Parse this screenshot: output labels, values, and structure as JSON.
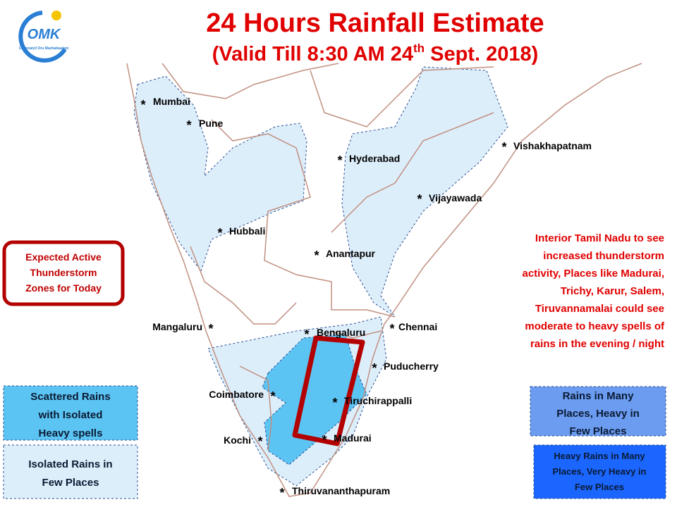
{
  "logo": {
    "text": "OMK",
    "tagline": "Chennaiyil Oru Mazhaikaalam"
  },
  "header": {
    "title": "24 Hours Rainfall Estimate",
    "subtitle": {
      "before": "(Valid Till 8:30 AM 24",
      "sup": "th",
      "after": " Sept. 2018)"
    }
  },
  "marker": "*",
  "cities": [
    "Mumbai",
    "Pune",
    "Hyderabad",
    "Vishakhapatnam",
    "Vijayawada",
    "Hubbali",
    "Anantapur",
    "Mangaluru",
    "Bengaluru",
    "Chennai",
    "Puducherry",
    "Coimbatore",
    "Tiruchirappalli",
    "Kochi",
    "Madurai",
    "Thiruvananthapuram"
  ],
  "zone_box": {
    "lines": [
      "Expected Active",
      "Thunderstorm",
      "Zones for Today"
    ]
  },
  "annotation": {
    "lines": [
      "Interior Tamil Nadu to see",
      "increased thunderstorm",
      "activity, Places like Madurai,",
      "Trichy, Karur, Salem,",
      "Tiruvannamalai  could see",
      "moderate to heavy spells of",
      "rains in the evening / night"
    ]
  },
  "legend": [
    {
      "lines": [
        "Scattered Rains",
        "with Isolated",
        "Heavy spells"
      ]
    },
    {
      "lines": [
        "Isolated Rains in",
        "Few  Places"
      ]
    },
    {
      "lines": [
        "Rains in Many",
        "Places, Heavy in",
        "Few Places"
      ]
    },
    {
      "lines": [
        "Heavy Rains in Many",
        "Places, Very Heavy in",
        "Few Places"
      ]
    }
  ]
}
